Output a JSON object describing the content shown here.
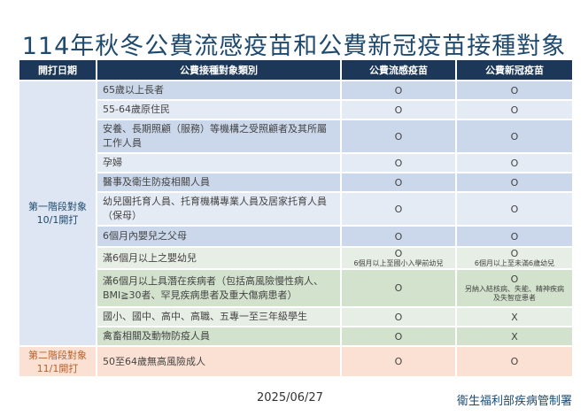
{
  "title": "114年秋冬公費流感疫苗和公費新冠疫苗接種對象",
  "headers": [
    "開打日期",
    "公費接種對象類別",
    "公費流感疫苗",
    "公費新冠疫苗"
  ],
  "phases": [
    {
      "label": "第一階段對象",
      "date": "10/1開打",
      "color": "#1f4a6e"
    },
    {
      "label": "第二階段對象",
      "date": "11/1開打",
      "color": "#b8602a"
    }
  ],
  "rows": [
    {
      "category": "65歲以上長者",
      "flu": "O",
      "covid": "O"
    },
    {
      "category": "55-64歲原住民",
      "flu": "O",
      "covid": "O"
    },
    {
      "category": "安養、長期照顧（服務）等機構之受照顧者及其所屬工作人員",
      "flu": "O",
      "covid": "O"
    },
    {
      "category": "孕婦",
      "flu": "O",
      "covid": "O"
    },
    {
      "category": "醫事及衛生防疫相關人員",
      "flu": "O",
      "covid": "O"
    },
    {
      "category": "幼兒園托育人員、托育機構專業人員及居家托育人員（保母）",
      "flu": "O",
      "covid": "O"
    },
    {
      "category": "6個月內嬰兒之父母",
      "flu": "O",
      "covid": "O"
    },
    {
      "category": "滿6個月以上之嬰幼兒",
      "flu": "O",
      "flu_note": "6個月以上至國小入學前幼兒",
      "covid": "O",
      "covid_note": "6個月以上至未滿6歲幼兒"
    },
    {
      "category": "滿6個月以上具潛在疾病者（包括高風險慢性病人、BMI≧30者、罕見疾病患者及重大傷病患者）",
      "flu": "O",
      "covid": "O",
      "covid_note": "另納入結核病、失能、精神疾病及失智症患者"
    },
    {
      "category": "國小、國中、高中、高職、五專一至三年級學生",
      "flu": "O",
      "covid": "X"
    },
    {
      "category": "禽畜相關及動物防疫人員",
      "flu": "O",
      "covid": "X"
    },
    {
      "category": "50至64歲無高風險成人",
      "flu": "O",
      "covid": "O"
    }
  ],
  "footer": {
    "date": "2025/06/27",
    "org": "衛生福利部疾病管制署"
  }
}
